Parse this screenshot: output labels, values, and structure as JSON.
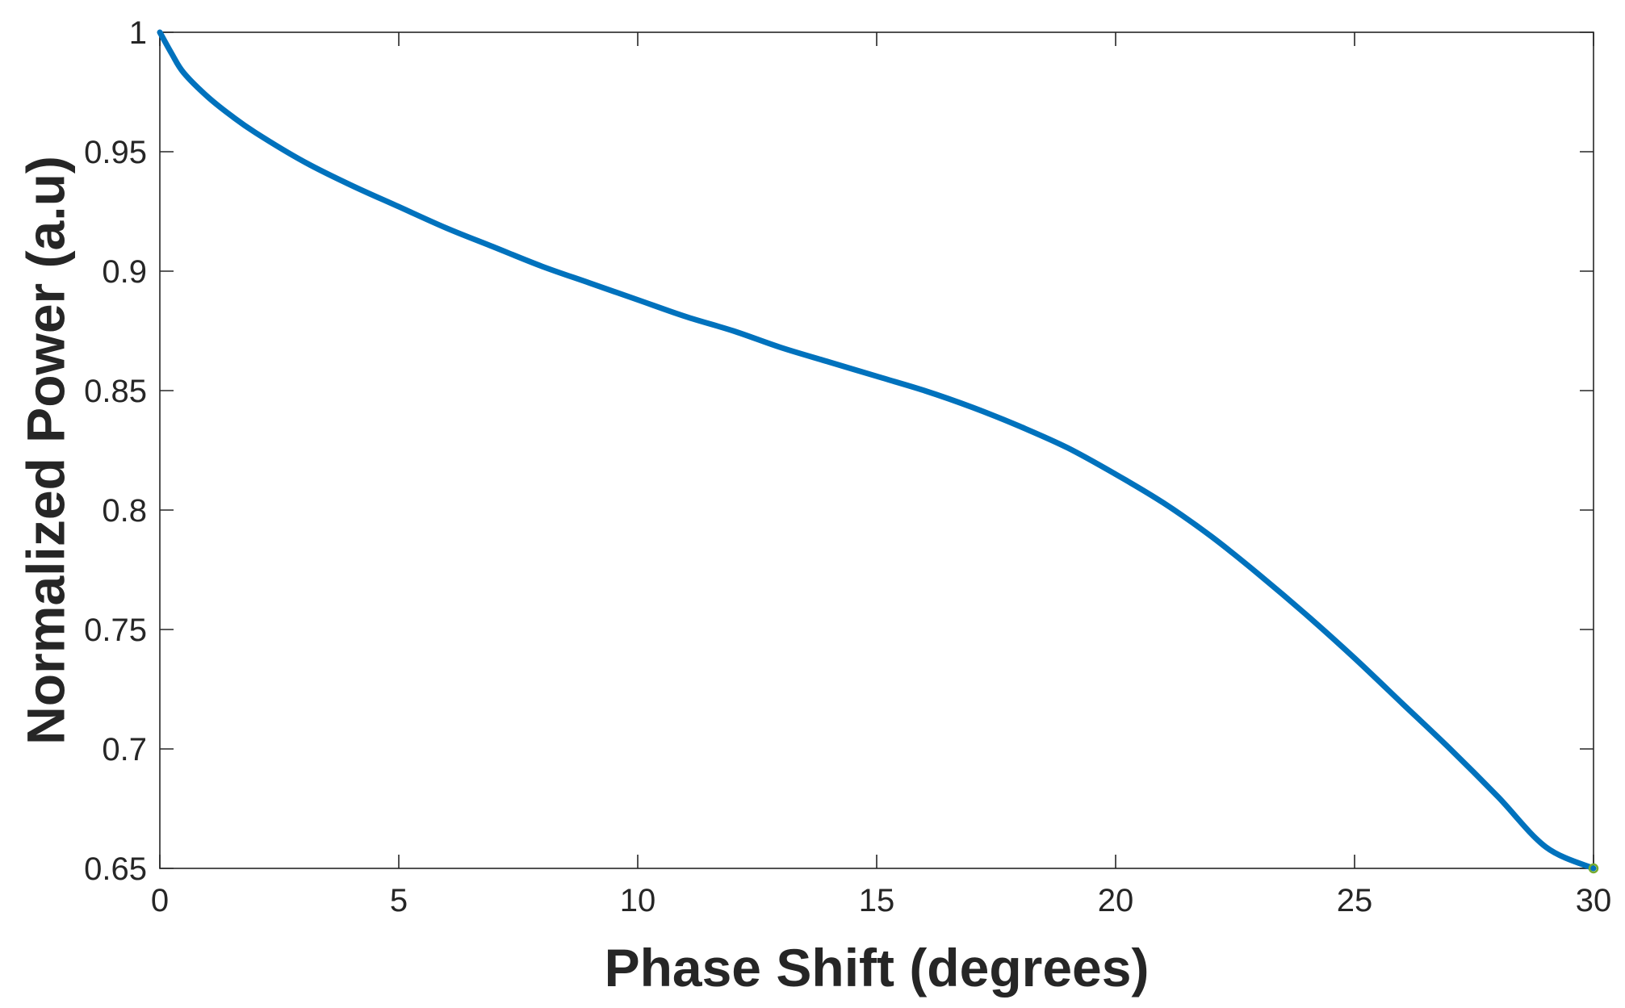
{
  "chart_data": {
    "type": "line",
    "title": "",
    "xlabel": "Phase Shift (degrees)",
    "ylabel": "Normalized Power (a.u)",
    "xlim": [
      0,
      30
    ],
    "ylim": [
      0.65,
      1
    ],
    "xticks": [
      0,
      5,
      10,
      15,
      20,
      25,
      30
    ],
    "xtick_labels": [
      "0",
      "5",
      "10",
      "15",
      "20",
      "25",
      "30"
    ],
    "yticks": [
      0.65,
      0.7,
      0.75,
      0.8,
      0.85,
      0.9,
      0.95,
      1
    ],
    "ytick_labels": [
      "0.65",
      "0.7",
      "0.75",
      "0.8",
      "0.85",
      "0.9",
      "0.95",
      "1"
    ],
    "grid": false,
    "box": true,
    "series": [
      {
        "color": "#0072BD",
        "x": [
          0,
          0.25,
          0.5,
          1,
          1.5,
          2,
          3,
          4,
          5,
          6,
          7,
          8,
          9,
          10,
          11,
          12,
          13,
          14,
          15,
          16,
          17,
          18,
          19,
          20,
          21,
          22,
          23,
          24,
          25,
          26,
          27,
          28,
          29,
          30
        ],
        "y": [
          1.0,
          0.991,
          0.983,
          0.973,
          0.965,
          0.958,
          0.946,
          0.936,
          0.927,
          0.918,
          0.91,
          0.902,
          0.895,
          0.888,
          0.881,
          0.875,
          0.868,
          0.862,
          0.856,
          0.85,
          0.843,
          0.835,
          0.826,
          0.815,
          0.803,
          0.789,
          0.773,
          0.756,
          0.738,
          0.719,
          0.7,
          0.68,
          0.659,
          0.65
        ]
      }
    ],
    "end_marker": {
      "x": 30,
      "y": 0.65,
      "color": "#77AC30"
    }
  }
}
